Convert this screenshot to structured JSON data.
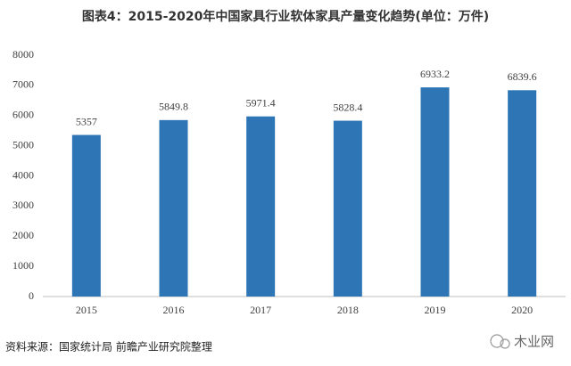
{
  "chart_data": {
    "type": "bar",
    "title": "图表4：2015-2020年中国家具行业软体家具产量变化趋势(单位：万件)",
    "source": "资料来源：国家统计局 前瞻产业研究院整理",
    "watermark": "木业网",
    "categories": [
      "2015",
      "2016",
      "2017",
      "2018",
      "2019",
      "2020"
    ],
    "values": [
      5357,
      5849.8,
      5971.4,
      5828.4,
      6933.2,
      6839.6
    ],
    "color": "#2e75b6",
    "ylim": [
      0,
      8000
    ],
    "yticks": [
      0,
      1000,
      2000,
      3000,
      4000,
      5000,
      6000,
      7000,
      8000
    ],
    "grid": false
  }
}
